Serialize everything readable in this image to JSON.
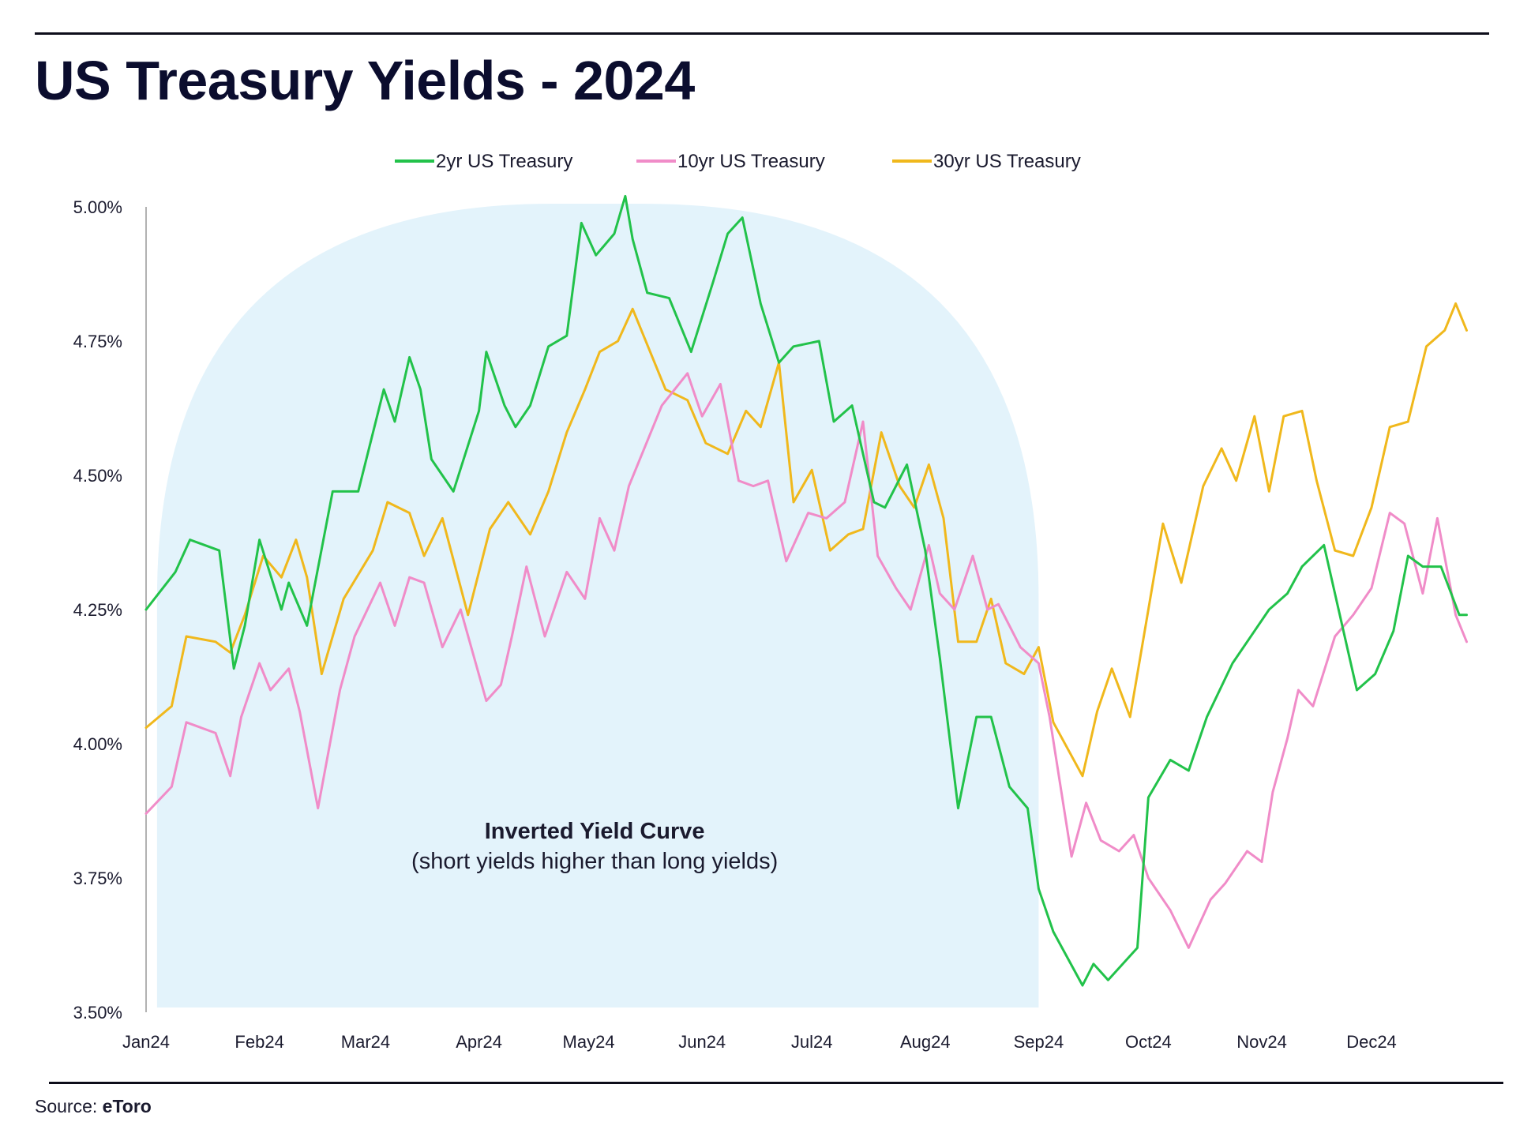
{
  "header": {
    "title": "US Treasury Yields - 2024"
  },
  "footer": {
    "source_label": "Source:",
    "source_name": "eToro"
  },
  "colors": {
    "y2": "#22c24a",
    "y10": "#f08cc8",
    "y30": "#f0b81c",
    "shade": "#e3f3fb",
    "axis": "#999999"
  },
  "chart_data": {
    "type": "line",
    "title": "US Treasury Yields - 2024",
    "xlabel": "",
    "ylabel": "",
    "x_ticks": [
      "Jan24",
      "Feb24",
      "Mar24",
      "Apr24",
      "May24",
      "Jun24",
      "Jul24",
      "Aug24",
      "Sep24",
      "Oct24",
      "Nov24",
      "Dec24"
    ],
    "y_ticks": [
      "5.00%",
      "4.75%",
      "4.50%",
      "4.25%",
      "4.00%",
      "3.75%",
      "3.50%"
    ],
    "ylim": [
      3.5,
      5.0
    ],
    "xlim": [
      "2024-01-01",
      "2024-12-31"
    ],
    "grid": false,
    "legend_position": "top-center",
    "annotation": {
      "title": "Inverted Yield Curve",
      "subtitle": "(short yields higher than long yields)",
      "x_range": [
        "2024-01-04",
        "2024-09-01"
      ]
    },
    "series": [
      {
        "name": "2yr US Treasury",
        "x": [
          "2024-01-01",
          "2024-01-09",
          "2024-01-13",
          "2024-01-21",
          "2024-01-25",
          "2024-01-28",
          "2024-02-01",
          "2024-02-07",
          "2024-02-09",
          "2024-02-14",
          "2024-02-21",
          "2024-02-28",
          "2024-03-06",
          "2024-03-09",
          "2024-03-13",
          "2024-03-16",
          "2024-03-19",
          "2024-03-25",
          "2024-04-01",
          "2024-04-03",
          "2024-04-08",
          "2024-04-11",
          "2024-04-15",
          "2024-04-20",
          "2024-04-25",
          "2024-04-29",
          "2024-05-03",
          "2024-05-08",
          "2024-05-11",
          "2024-05-13",
          "2024-05-17",
          "2024-05-23",
          "2024-05-29",
          "2024-06-04",
          "2024-06-08",
          "2024-06-12",
          "2024-06-17",
          "2024-06-22",
          "2024-06-26",
          "2024-07-03",
          "2024-07-07",
          "2024-07-12",
          "2024-07-18",
          "2024-07-21",
          "2024-07-27",
          "2024-08-01",
          "2024-08-05",
          "2024-08-10",
          "2024-08-15",
          "2024-08-19",
          "2024-08-24",
          "2024-08-29",
          "2024-09-01",
          "2024-09-05",
          "2024-09-09",
          "2024-09-13",
          "2024-09-16",
          "2024-09-20",
          "2024-09-24",
          "2024-09-28",
          "2024-10-01",
          "2024-10-07",
          "2024-10-12",
          "2024-10-17",
          "2024-10-24",
          "2024-10-30",
          "2024-11-03",
          "2024-11-08",
          "2024-11-12",
          "2024-11-18",
          "2024-11-22",
          "2024-11-27",
          "2024-12-02",
          "2024-12-07",
          "2024-12-11",
          "2024-12-15",
          "2024-12-20",
          "2024-12-25",
          "2024-12-27"
        ],
        "values": [
          4.25,
          4.32,
          4.38,
          4.36,
          4.14,
          4.22,
          4.38,
          4.25,
          4.3,
          4.22,
          4.47,
          4.47,
          4.66,
          4.6,
          4.72,
          4.66,
          4.53,
          4.47,
          4.62,
          4.73,
          4.63,
          4.59,
          4.63,
          4.74,
          4.76,
          4.97,
          4.91,
          4.95,
          5.02,
          4.94,
          4.84,
          4.83,
          4.73,
          4.86,
          4.95,
          4.98,
          4.82,
          4.71,
          4.74,
          4.75,
          4.6,
          4.63,
          4.45,
          4.44,
          4.52,
          4.36,
          4.16,
          3.88,
          4.05,
          4.05,
          3.92,
          3.88,
          3.73,
          3.65,
          3.6,
          3.55,
          3.59,
          3.56,
          3.59,
          3.62,
          3.9,
          3.97,
          3.95,
          4.05,
          4.15,
          4.21,
          4.25,
          4.28,
          4.33,
          4.37,
          4.25,
          4.1,
          4.13,
          4.21,
          4.35,
          4.33,
          4.33,
          4.24,
          4.24
        ]
      },
      {
        "name": "10yr US Treasury",
        "x": [
          "2024-01-01",
          "2024-01-08",
          "2024-01-12",
          "2024-01-20",
          "2024-01-24",
          "2024-01-27",
          "2024-02-01",
          "2024-02-04",
          "2024-02-09",
          "2024-02-12",
          "2024-02-17",
          "2024-02-23",
          "2024-02-27",
          "2024-03-05",
          "2024-03-09",
          "2024-03-13",
          "2024-03-17",
          "2024-03-22",
          "2024-03-27",
          "2024-04-03",
          "2024-04-07",
          "2024-04-10",
          "2024-04-14",
          "2024-04-19",
          "2024-04-25",
          "2024-04-30",
          "2024-05-04",
          "2024-05-08",
          "2024-05-12",
          "2024-05-15",
          "2024-05-21",
          "2024-05-28",
          "2024-06-01",
          "2024-06-06",
          "2024-06-11",
          "2024-06-15",
          "2024-06-19",
          "2024-06-24",
          "2024-06-30",
          "2024-07-05",
          "2024-07-10",
          "2024-07-15",
          "2024-07-19",
          "2024-07-24",
          "2024-07-28",
          "2024-08-02",
          "2024-08-05",
          "2024-08-09",
          "2024-08-14",
          "2024-08-18",
          "2024-08-21",
          "2024-08-27",
          "2024-09-01",
          "2024-09-04",
          "2024-09-10",
          "2024-09-14",
          "2024-09-18",
          "2024-09-23",
          "2024-09-27",
          "2024-10-01",
          "2024-10-07",
          "2024-10-12",
          "2024-10-18",
          "2024-10-22",
          "2024-10-28",
          "2024-11-01",
          "2024-11-04",
          "2024-11-08",
          "2024-11-11",
          "2024-11-15",
          "2024-11-21",
          "2024-11-26",
          "2024-12-01",
          "2024-12-06",
          "2024-12-10",
          "2024-12-15",
          "2024-12-19",
          "2024-12-24",
          "2024-12-27"
        ],
        "values": [
          3.87,
          3.92,
          4.04,
          4.02,
          3.94,
          4.05,
          4.15,
          4.1,
          4.14,
          4.06,
          3.88,
          4.1,
          4.2,
          4.3,
          4.22,
          4.31,
          4.3,
          4.18,
          4.25,
          4.08,
          4.11,
          4.2,
          4.33,
          4.2,
          4.32,
          4.27,
          4.42,
          4.36,
          4.48,
          4.53,
          4.63,
          4.69,
          4.61,
          4.67,
          4.49,
          4.48,
          4.49,
          4.34,
          4.43,
          4.42,
          4.45,
          4.6,
          4.35,
          4.29,
          4.25,
          4.37,
          4.28,
          4.25,
          4.35,
          4.25,
          4.26,
          4.18,
          4.15,
          4.05,
          3.79,
          3.89,
          3.82,
          3.8,
          3.83,
          3.75,
          3.69,
          3.62,
          3.71,
          3.74,
          3.8,
          3.78,
          3.91,
          4.01,
          4.1,
          4.07,
          4.2,
          4.24,
          4.29,
          4.43,
          4.41,
          4.28,
          4.42,
          4.24,
          4.19
        ]
      },
      {
        "name": "30yr US Treasury",
        "x": [
          "2024-01-01",
          "2024-01-08",
          "2024-01-12",
          "2024-01-20",
          "2024-01-24",
          "2024-01-28",
          "2024-02-02",
          "2024-02-07",
          "2024-02-11",
          "2024-02-14",
          "2024-02-18",
          "2024-02-24",
          "2024-03-03",
          "2024-03-07",
          "2024-03-13",
          "2024-03-17",
          "2024-03-22",
          "2024-03-29",
          "2024-04-04",
          "2024-04-09",
          "2024-04-15",
          "2024-04-20",
          "2024-04-25",
          "2024-04-30",
          "2024-05-04",
          "2024-05-09",
          "2024-05-13",
          "2024-05-16",
          "2024-05-22",
          "2024-05-28",
          "2024-06-02",
          "2024-06-08",
          "2024-06-13",
          "2024-06-17",
          "2024-06-22",
          "2024-06-26",
          "2024-07-01",
          "2024-07-06",
          "2024-07-11",
          "2024-07-15",
          "2024-07-20",
          "2024-07-25",
          "2024-07-29",
          "2024-08-02",
          "2024-08-06",
          "2024-08-10",
          "2024-08-15",
          "2024-08-19",
          "2024-08-23",
          "2024-08-28",
          "2024-09-01",
          "2024-09-05",
          "2024-09-09",
          "2024-09-13",
          "2024-09-17",
          "2024-09-21",
          "2024-09-26",
          "2024-10-01",
          "2024-10-05",
          "2024-10-10",
          "2024-10-16",
          "2024-10-21",
          "2024-10-25",
          "2024-10-30",
          "2024-11-03",
          "2024-11-07",
          "2024-11-12",
          "2024-11-16",
          "2024-11-21",
          "2024-11-26",
          "2024-12-01",
          "2024-12-06",
          "2024-12-11",
          "2024-12-16",
          "2024-12-21",
          "2024-12-24",
          "2024-12-27"
        ],
        "values": [
          4.03,
          4.07,
          4.2,
          4.19,
          4.17,
          4.24,
          4.35,
          4.31,
          4.38,
          4.31,
          4.13,
          4.27,
          4.36,
          4.45,
          4.43,
          4.35,
          4.42,
          4.24,
          4.4,
          4.45,
          4.39,
          4.47,
          4.58,
          4.66,
          4.73,
          4.75,
          4.81,
          4.76,
          4.66,
          4.64,
          4.56,
          4.54,
          4.62,
          4.59,
          4.71,
          4.45,
          4.51,
          4.36,
          4.39,
          4.4,
          4.58,
          4.48,
          4.44,
          4.52,
          4.42,
          4.19,
          4.19,
          4.27,
          4.15,
          4.13,
          4.18,
          4.04,
          3.99,
          3.94,
          4.06,
          4.14,
          4.05,
          4.25,
          4.41,
          4.3,
          4.48,
          4.55,
          4.49,
          4.61,
          4.47,
          4.61,
          4.62,
          4.49,
          4.36,
          4.35,
          4.44,
          4.59,
          4.6,
          4.74,
          4.77,
          4.82,
          4.77
        ]
      }
    ]
  }
}
